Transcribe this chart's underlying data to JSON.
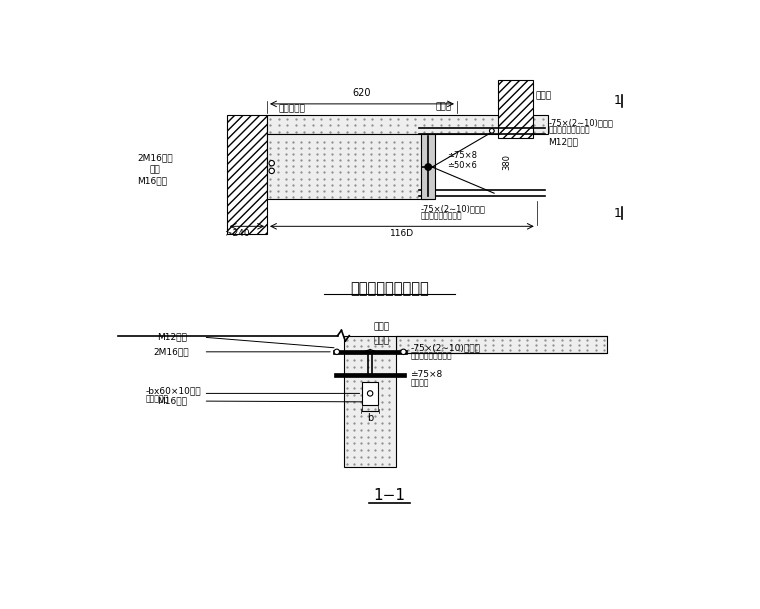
{
  "bg_color": "#ffffff",
  "title": "梁式阳台支架法加固",
  "subtitle": "1−1",
  "top": {
    "dim_620": "620",
    "dim_240": ">240",
    "dim_1160": "116D",
    "label_lanban": "栏板墙",
    "label_xuantiao": "悬挑棁",
    "label_mortar": "座乳胶水泥",
    "label_m12": "M12锄栓",
    "label_2m16": "2M16螺栓",
    "label_dangban": "挡板",
    "label_m16": "M16螺栓",
    "label_steel_top": "-75×(2∼10)钓板楔",
    "label_steel_top2": "顶紧后，与角钗焊接",
    "label_steel_bot": "-75×(2∼10)钓板楔",
    "label_steel_bot2": "顶紧后，与角钗焊接",
    "label_75x8": "≐75×8",
    "label_50x6": "≐50×6",
    "label_380": "380"
  },
  "bot": {
    "label_lanban": "栏板墙",
    "label_xuantiao": "悬挑棁",
    "label_m12": "M12锄栓",
    "label_2m16": "2M16螺栓",
    "label_bx60": "-bx60×10钓板",
    "label_bx60b": "与角钗焊接",
    "label_m16": "M16螺栓",
    "label_steel": "-75×(2∼10)钓板楔",
    "label_steel2": "顶紧后，与角钗焊接",
    "label_275x8": "≐75×8",
    "label_275x8b": "後批焊接",
    "label_b": "b"
  }
}
